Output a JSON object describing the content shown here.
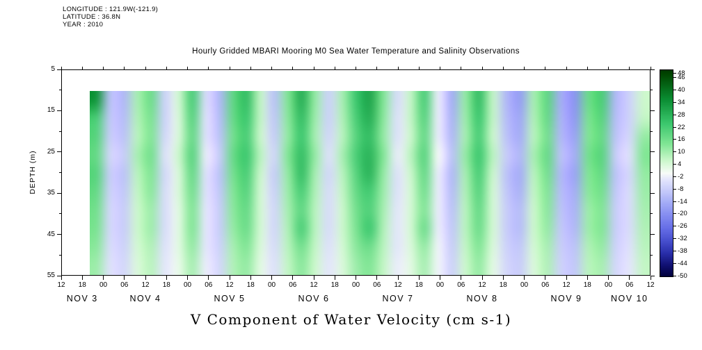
{
  "header": {
    "longitude": "LONGITUDE : 121.9W(-121.9)",
    "latitude": "LATITUDE : 36.8N",
    "year": "YEAR : 2010"
  },
  "title": "Hourly Gridded MBARI Mooring M0 Sea Water Temperature and Salinity Observations",
  "bottom_title": "V Component of Water Velocity (cm s-1)",
  "y_axis": {
    "label": "DEPTH (m)",
    "ticks": [
      5,
      15,
      25,
      35,
      45,
      55
    ],
    "minor_ticks": [
      10,
      20,
      30,
      40,
      50
    ],
    "range": [
      5,
      55
    ]
  },
  "x_axis": {
    "tick_labels": [
      "12",
      "18",
      "00",
      "06",
      "12",
      "18",
      "00",
      "06",
      "12",
      "18",
      "00",
      "06",
      "12",
      "18",
      "00",
      "06",
      "12",
      "18",
      "00",
      "06",
      "12",
      "18",
      "00",
      "06",
      "12",
      "18",
      "00",
      "06",
      "12"
    ],
    "range_hours": [
      0,
      168
    ],
    "date_labels": [
      {
        "label": "NOV 3",
        "hour": 6
      },
      {
        "label": "NOV 4",
        "hour": 24
      },
      {
        "label": "NOV 5",
        "hour": 48
      },
      {
        "label": "NOV 6",
        "hour": 72
      },
      {
        "label": "NOV 7",
        "hour": 96
      },
      {
        "label": "NOV 8",
        "hour": 120
      },
      {
        "label": "NOV 9",
        "hour": 144
      },
      {
        "label": "NOV 10",
        "hour": 162
      }
    ]
  },
  "colorbar": {
    "range": [
      -50,
      50
    ],
    "labels": [
      48,
      46,
      40,
      34,
      28,
      22,
      16,
      10,
      4,
      -2,
      -8,
      -14,
      -20,
      -26,
      -32,
      -38,
      -44,
      -50
    ],
    "stops": [
      {
        "v": 50,
        "color": "#003800"
      },
      {
        "v": 48,
        "color": "#004600"
      },
      {
        "v": 36,
        "color": "#0a8c32"
      },
      {
        "v": 24,
        "color": "#3cc86e"
      },
      {
        "v": 14,
        "color": "#82e696"
      },
      {
        "v": 6,
        "color": "#cdf8cd"
      },
      {
        "v": 0,
        "color": "#f8fcf8"
      },
      {
        "v": -3,
        "color": "#e4e6fc"
      },
      {
        "v": -9,
        "color": "#c3c8fa"
      },
      {
        "v": -15,
        "color": "#a0a8f6"
      },
      {
        "v": -21,
        "color": "#828af0"
      },
      {
        "v": -27,
        "color": "#646ce6"
      },
      {
        "v": -33,
        "color": "#464ecd"
      },
      {
        "v": -39,
        "color": "#282da8"
      },
      {
        "v": -45,
        "color": "#0f0f6e"
      },
      {
        "v": -50,
        "color": "#00003c"
      }
    ]
  },
  "chart_data": {
    "type": "heatmap",
    "title": "Hourly Gridded MBARI Mooring M0 Sea Water Temperature and Salinity Observations",
    "ylabel": "DEPTH (m)",
    "units": "cm s-1",
    "depths_m": [
      10,
      15,
      20,
      25,
      30,
      35,
      40,
      45,
      50,
      55
    ],
    "time_hours_since_nov3_1200": [
      8,
      12,
      16,
      20,
      24,
      28,
      32,
      36,
      40,
      44,
      48,
      52,
      56,
      60,
      64,
      68,
      72,
      76,
      80,
      84,
      88,
      92,
      96,
      100,
      104,
      108,
      112,
      116,
      120,
      124,
      128,
      132,
      136,
      140,
      144,
      148,
      152,
      156,
      160,
      164,
      168
    ],
    "values": [
      [
        34,
        -10,
        -12,
        10,
        17,
        -7,
        5,
        22,
        -5,
        -12,
        19,
        26,
        7,
        -10,
        14,
        29,
        12,
        -7,
        10,
        24,
        31,
        14,
        -5,
        7,
        22,
        -2,
        -14,
        12,
        26,
        7,
        -12,
        -17,
        10,
        19,
        -14,
        -19,
        17,
        22,
        -12,
        -7,
        6
      ],
      [
        22,
        -9,
        -11,
        9,
        15,
        -7,
        4,
        20,
        -4,
        -11,
        18,
        24,
        7,
        -9,
        13,
        26,
        11,
        -7,
        9,
        22,
        29,
        13,
        -4,
        7,
        20,
        -2,
        -13,
        11,
        24,
        7,
        -11,
        -15,
        9,
        18,
        -13,
        -18,
        15,
        20,
        -11,
        -7,
        7
      ],
      [
        20,
        -8,
        -10,
        8,
        14,
        -6,
        4,
        18,
        -4,
        -10,
        16,
        22,
        6,
        -8,
        12,
        24,
        10,
        -6,
        8,
        20,
        26,
        12,
        -4,
        6,
        18,
        -2,
        -12,
        10,
        22,
        6,
        -10,
        -14,
        8,
        16,
        -12,
        -16,
        14,
        18,
        -10,
        -6,
        12
      ],
      [
        18,
        -6,
        -8,
        10,
        16,
        -4,
        6,
        20,
        -2,
        -8,
        18,
        24,
        8,
        -6,
        14,
        26,
        12,
        -4,
        10,
        22,
        28,
        14,
        -2,
        8,
        20,
        0,
        -10,
        12,
        24,
        8,
        -8,
        -12,
        10,
        18,
        -10,
        -14,
        16,
        20,
        -8,
        -4,
        14
      ],
      [
        20,
        -8,
        -10,
        8,
        14,
        -6,
        4,
        18,
        -4,
        -10,
        16,
        22,
        6,
        -8,
        12,
        26,
        10,
        -6,
        8,
        20,
        28,
        12,
        -4,
        6,
        18,
        -2,
        -12,
        10,
        22,
        6,
        -10,
        -14,
        8,
        16,
        -12,
        -16,
        14,
        18,
        -10,
        -6,
        12
      ],
      [
        18,
        -7,
        -9,
        7,
        13,
        -5,
        4,
        16,
        -4,
        -9,
        14,
        20,
        5,
        -7,
        11,
        22,
        9,
        -5,
        7,
        18,
        23,
        11,
        -4,
        5,
        16,
        -2,
        -11,
        9,
        20,
        5,
        -9,
        -13,
        7,
        14,
        -11,
        -14,
        13,
        16,
        -9,
        -5,
        11
      ],
      [
        16,
        -6,
        -8,
        6,
        11,
        -5,
        3,
        14,
        -3,
        -8,
        13,
        18,
        5,
        -6,
        10,
        19,
        8,
        -5,
        6,
        16,
        21,
        10,
        -3,
        5,
        14,
        -2,
        -10,
        8,
        18,
        5,
        -8,
        -11,
        6,
        13,
        -10,
        -13,
        11,
        14,
        -8,
        -5,
        10
      ],
      [
        15,
        -6,
        -8,
        6,
        11,
        -5,
        3,
        14,
        -3,
        -8,
        12,
        17,
        5,
        -6,
        9,
        22,
        8,
        -5,
        6,
        15,
        24,
        9,
        -3,
        5,
        17,
        -2,
        -9,
        8,
        17,
        5,
        -8,
        -11,
        6,
        12,
        -9,
        -12,
        11,
        14,
        -8,
        -5,
        9
      ],
      [
        13,
        -5,
        -7,
        5,
        9,
        -4,
        3,
        12,
        -3,
        -7,
        10,
        14,
        4,
        -5,
        8,
        16,
        7,
        -4,
        5,
        13,
        17,
        8,
        -3,
        4,
        12,
        -1,
        -8,
        7,
        14,
        4,
        -7,
        -9,
        5,
        10,
        -8,
        -10,
        9,
        12,
        -7,
        -4,
        8
      ],
      [
        11,
        -4,
        -6,
        4,
        8,
        -3,
        2,
        10,
        -2,
        -6,
        9,
        12,
        3,
        -4,
        7,
        13,
        6,
        -3,
        4,
        11,
        14,
        7,
        -2,
        3,
        10,
        -1,
        -7,
        6,
        12,
        3,
        -6,
        -8,
        4,
        9,
        -7,
        -9,
        8,
        10,
        -6,
        -3,
        7
      ]
    ]
  }
}
